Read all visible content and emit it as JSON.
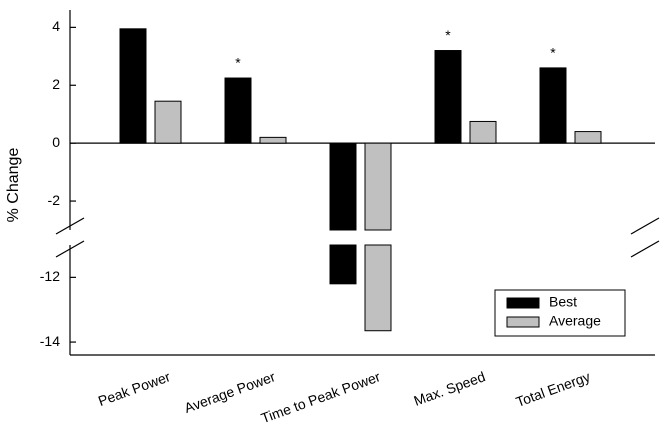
{
  "chart_data": {
    "type": "bar",
    "y_label": "% Change",
    "categories": [
      "Peak Power",
      "Average Power",
      "Time to Peak Power",
      "Max. Speed",
      "Total Energy"
    ],
    "series": [
      {
        "name": "Best",
        "color": "#000000",
        "values": [
          3.95,
          2.25,
          -12.2,
          3.2,
          2.6
        ]
      },
      {
        "name": "Average",
        "color": "#c0c0c0",
        "values": [
          1.45,
          0.2,
          -13.65,
          0.75,
          0.4
        ]
      }
    ],
    "annotations": [
      {
        "text": "*",
        "x": "Average Power"
      },
      {
        "text": "*",
        "x": "Max. Speed"
      },
      {
        "text": "*",
        "x": "Total Energy"
      }
    ],
    "ylim": [
      -14.4,
      4.6
    ],
    "ybreak": [
      -11,
      -3
    ],
    "yticks": [
      -14,
      -12,
      -2,
      0,
      2,
      4
    ],
    "legend": "lower right"
  }
}
